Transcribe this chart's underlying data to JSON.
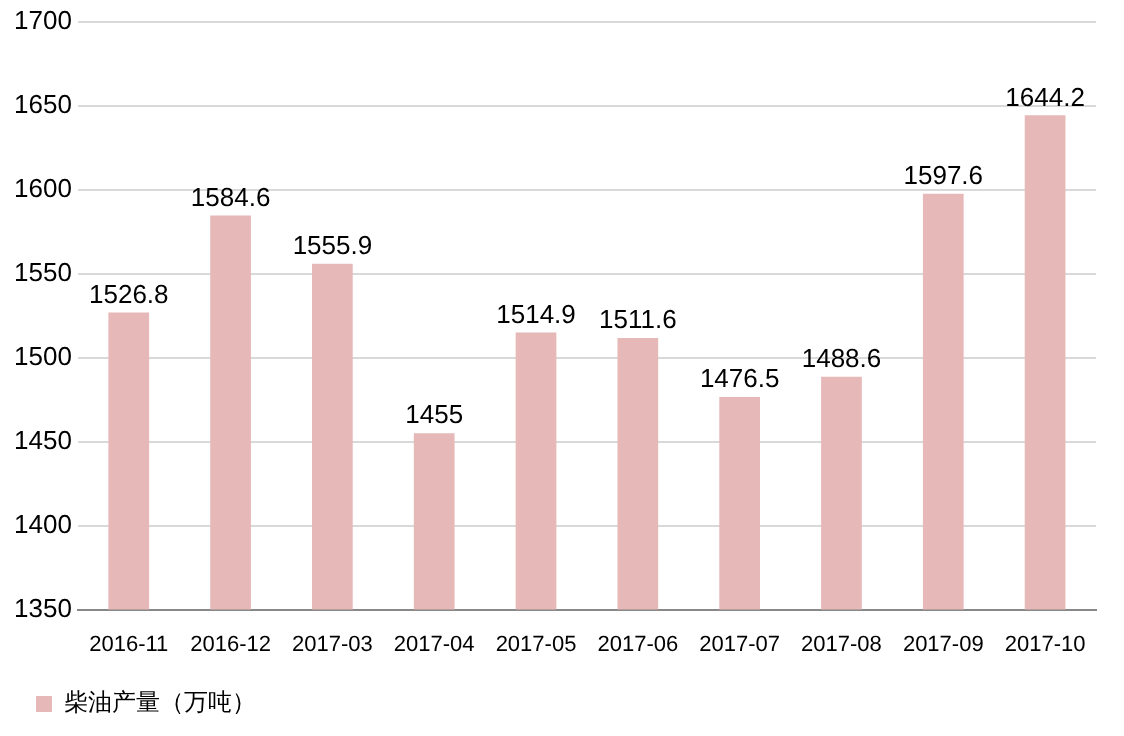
{
  "chart_data": {
    "type": "bar",
    "categories": [
      "2016-11",
      "2016-12",
      "2017-03",
      "2017-04",
      "2017-05",
      "2017-06",
      "2017-07",
      "2017-08",
      "2017-09",
      "2017-10"
    ],
    "series": [
      {
        "name": "柴油产量（万吨）",
        "color": "#e6b9b8",
        "values": [
          1526.8,
          1584.6,
          1555.9,
          1455,
          1514.9,
          1511.6,
          1476.5,
          1488.6,
          1597.6,
          1644.2
        ]
      }
    ],
    "ylim": [
      1350,
      1700
    ],
    "yticks": [
      1350,
      1400,
      1450,
      1500,
      1550,
      1600,
      1650,
      1700
    ],
    "grid": "y",
    "legend": "bottom left",
    "data_labels": true
  }
}
